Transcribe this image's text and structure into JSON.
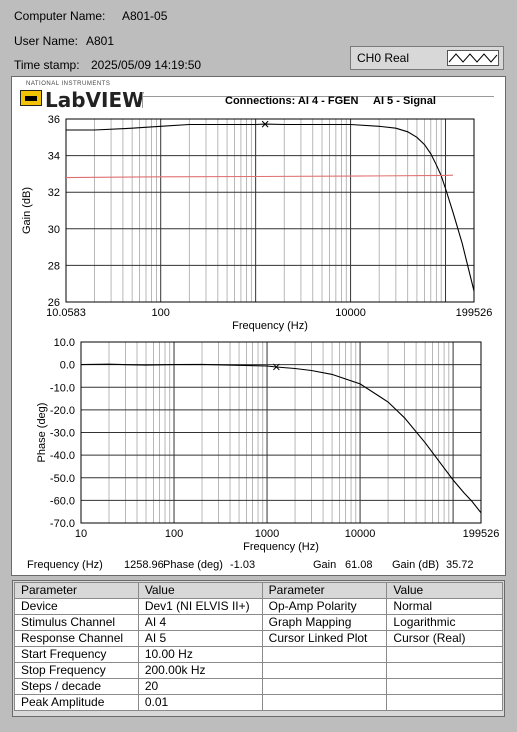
{
  "info": {
    "computer_name_label": "Computer Name:",
    "computer_name_value": "A801-05",
    "user_name_label": "User Name:",
    "user_name_value": "A801",
    "timestamp_label": "Time stamp:",
    "timestamp_value": "2025/05/09 14:19:50"
  },
  "channel_box": {
    "label": "CH0 Real",
    "icon": "sine-wave-icon"
  },
  "logo": {
    "word": "LabVIEW",
    "small_text": "NATIONAL INSTRUMENTS"
  },
  "connections": {
    "title": "Connections: AI 4 - FGEN",
    "signal": "AI 5 - Signal"
  },
  "cursor_readout": {
    "freq_label": "Frequency (Hz)",
    "freq_value": "1258.96",
    "phase_label": "Phase (deg)",
    "phase_value": "-1.03",
    "gain_label": "Gain",
    "gain_value": "61.08",
    "gain_db_label": "Gain (dB)",
    "gain_db_value": "35.72"
  },
  "chart_data": [
    {
      "type": "line",
      "ylabel": "Gain (dB)",
      "xlabel": "Frequency (Hz)",
      "xscale": "log",
      "xlim": [
        10.0583,
        199526
      ],
      "ylim": [
        26,
        36
      ],
      "x_tick_labels": [
        "10.0583",
        "100",
        "10000",
        "199526"
      ],
      "y_tick_labels": [
        "36",
        "34",
        "32",
        "30",
        "28",
        "26"
      ],
      "grid": true,
      "series": [
        {
          "color": "#000000",
          "x": [
            10.0583,
            20,
            50,
            100,
            200,
            500,
            1000,
            1258.96,
            2000,
            5000,
            10000,
            20000,
            30000,
            40000,
            50000,
            60000,
            70000,
            80000,
            90000,
            100000,
            120000,
            150000,
            199526
          ],
          "y": [
            35.4,
            35.4,
            35.5,
            35.6,
            35.7,
            35.7,
            35.7,
            35.72,
            35.7,
            35.7,
            35.7,
            35.6,
            35.5,
            35.3,
            35.0,
            34.6,
            34.1,
            33.5,
            32.9,
            32.2,
            30.9,
            29.2,
            26.6
          ]
        },
        {
          "color": "#e07070",
          "x": [
            10.0583,
            100,
            1000,
            10000,
            100000,
            120000
          ],
          "y": [
            32.8,
            32.84,
            32.86,
            32.88,
            32.92,
            32.93
          ]
        }
      ]
    },
    {
      "type": "line",
      "ylabel": "Phase (deg)",
      "xlabel": "Frequency (Hz)",
      "xscale": "log",
      "xlim": [
        10,
        199526
      ],
      "ylim": [
        -70,
        10
      ],
      "x_tick_labels": [
        "10",
        "100",
        "1000",
        "10000",
        "199526"
      ],
      "y_tick_labels": [
        "10.0",
        "0.0",
        "-10.0",
        "-20.0",
        "-30.0",
        "-40.0",
        "-50.0",
        "-60.0",
        "-70.0"
      ],
      "grid": true,
      "series": [
        {
          "color": "#000000",
          "x": [
            10,
            20,
            50,
            100,
            200,
            500,
            1000,
            1258.96,
            2000,
            3000,
            5000,
            10000,
            20000,
            30000,
            50000,
            70000,
            100000,
            130000,
            160000,
            199526
          ],
          "y": [
            0.0,
            0.2,
            -0.2,
            0.0,
            0.1,
            -0.3,
            -0.6,
            -1.03,
            -1.7,
            -2.6,
            -4.3,
            -8.5,
            -16.5,
            -23.5,
            -34.5,
            -42.5,
            -51.0,
            -56.5,
            -60.5,
            -65.5
          ]
        }
      ]
    }
  ],
  "params_table": {
    "headers": [
      "Parameter",
      "Value",
      "Parameter",
      "Value"
    ],
    "rows": [
      [
        "Device",
        "Dev1 (NI ELVIS II+)",
        "Op-Amp Polarity",
        "Normal"
      ],
      [
        "Stimulus Channel",
        "AI 4",
        "Graph Mapping",
        "Logarithmic"
      ],
      [
        "Response Channel",
        "AI 5",
        "Cursor Linked Plot",
        "Cursor (Real)"
      ],
      [
        "Start Frequency",
        "10.00 Hz",
        "",
        ""
      ],
      [
        "Stop Frequency",
        "200.00k Hz",
        "",
        ""
      ],
      [
        "Steps / decade",
        "20",
        "",
        ""
      ],
      [
        "Peak Amplitude",
        "0.01",
        "",
        ""
      ]
    ]
  }
}
